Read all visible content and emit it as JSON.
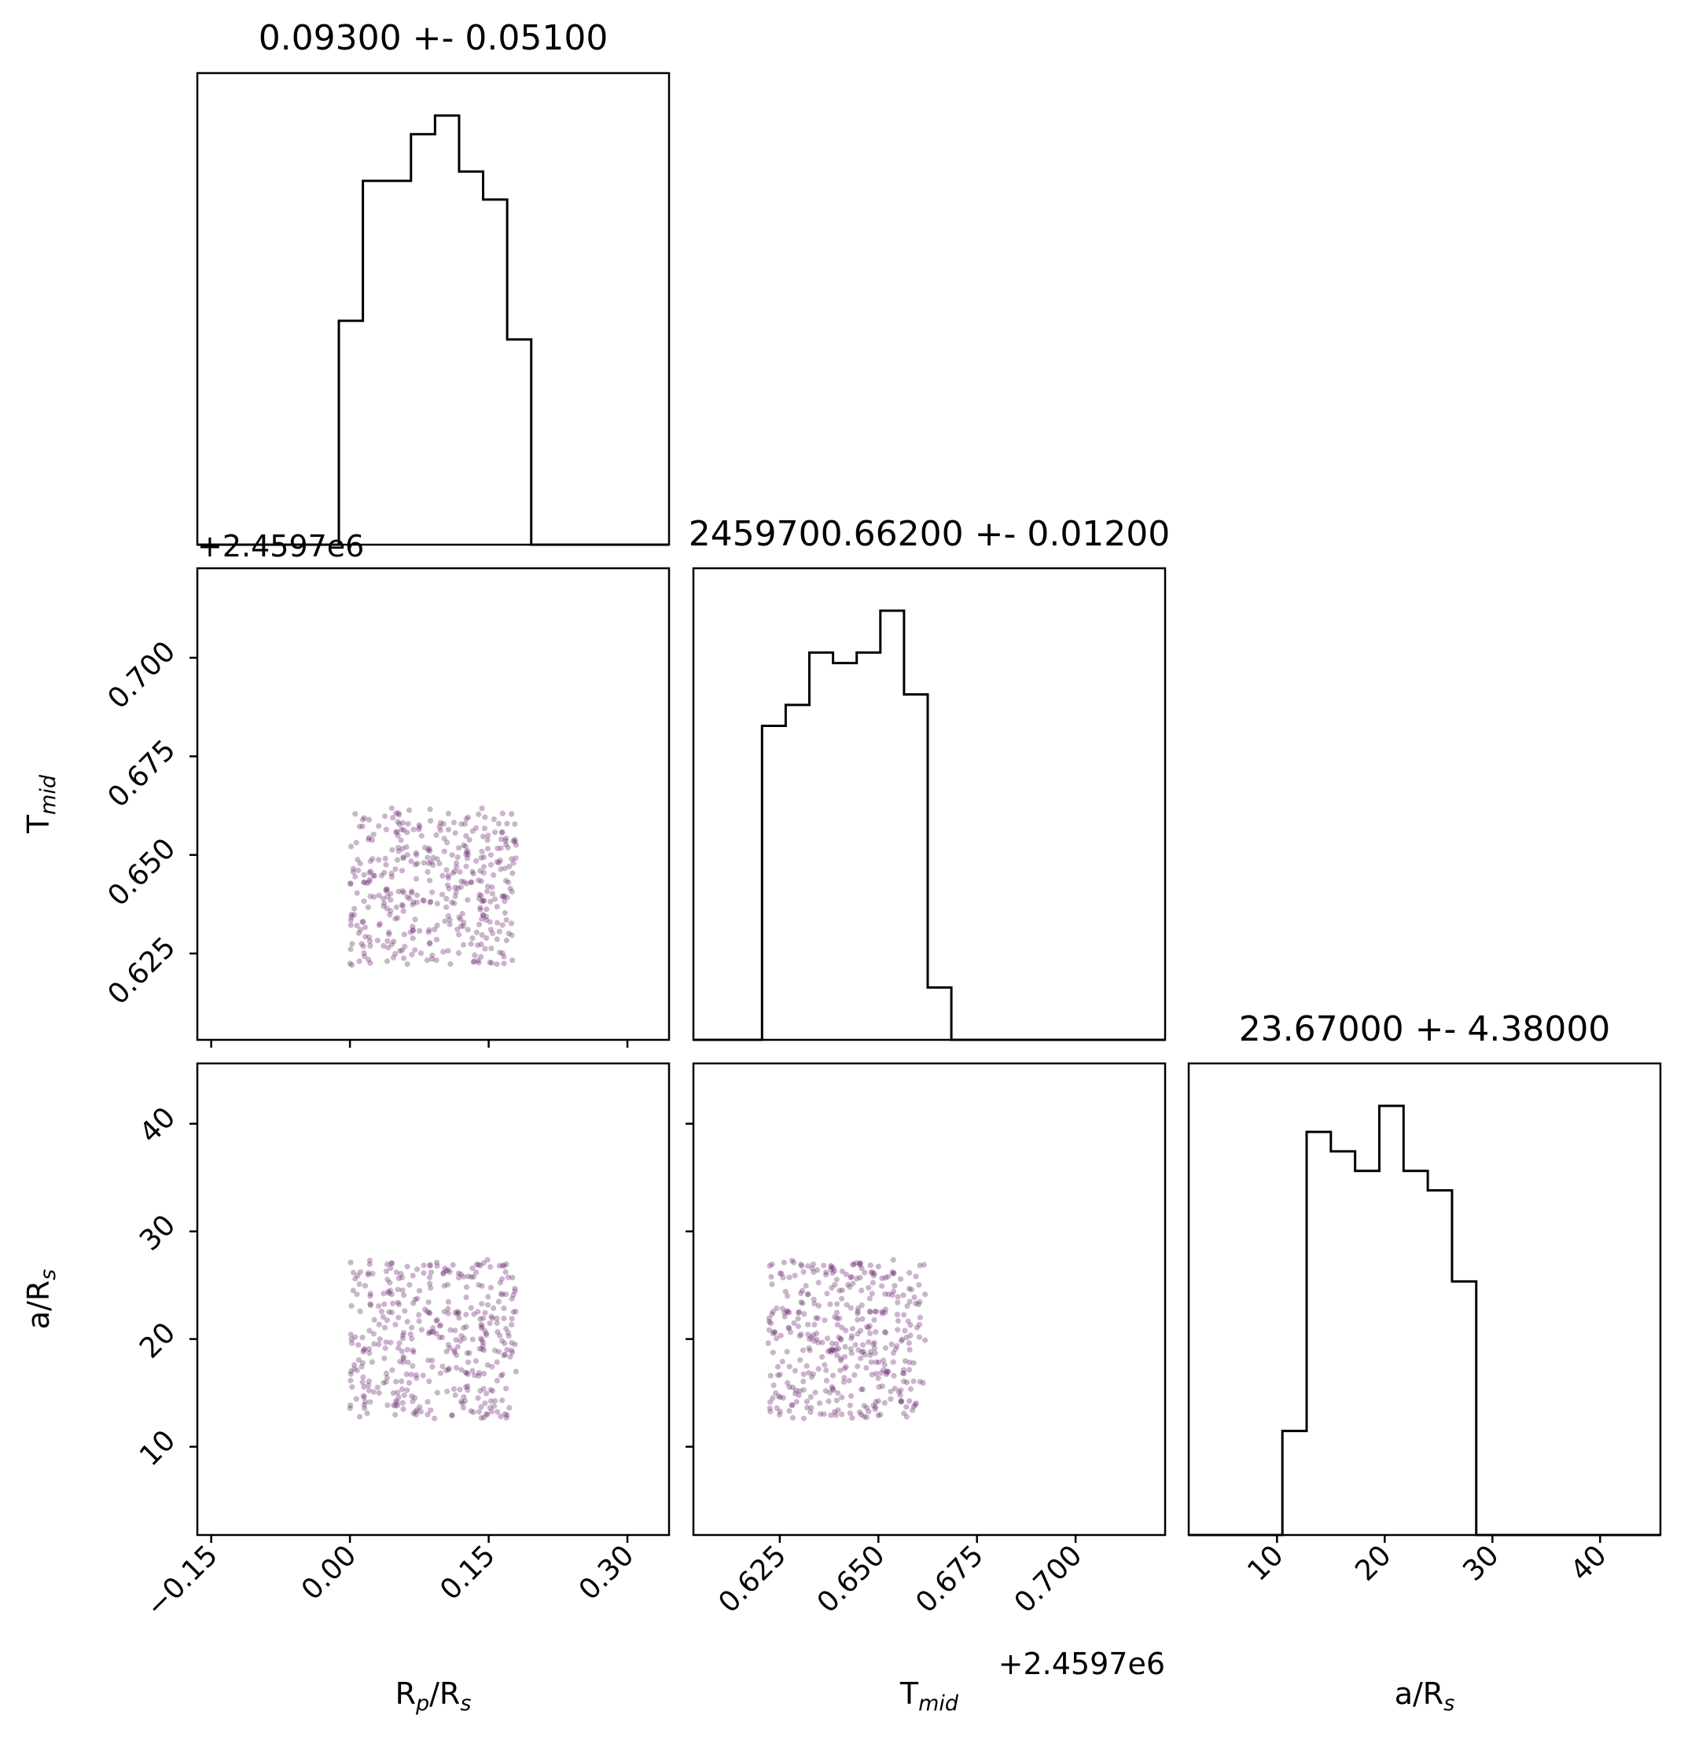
{
  "chart_data": {
    "type": "corner",
    "parameters": [
      {
        "key": "rp",
        "label_main": "R",
        "label_sub": "p",
        "label_rest": "/R",
        "label_sub2": "s"
      },
      {
        "key": "tmid",
        "label_main": "T",
        "label_sub": "mid",
        "label_rest": "",
        "label_sub2": ""
      },
      {
        "key": "a",
        "label_main": "a/R",
        "label_sub": "s",
        "label_rest": "",
        "label_sub2": ""
      }
    ],
    "titles": [
      "0.09300 +- 0.05100",
      "2459700.66200 +- 0.01200",
      "23.67000 +- 4.38000"
    ],
    "offset_text": "+2.4597e6",
    "axes": {
      "rp": {
        "range": [
          -0.165,
          0.345
        ],
        "ticks": [
          -0.15,
          0.0,
          0.15,
          0.3
        ],
        "tick_labels": [
          "−0.15",
          "0.00",
          "0.15",
          "0.30"
        ]
      },
      "tmid": {
        "range": [
          0.6031,
          0.7227
        ],
        "ticks": [
          0.625,
          0.65,
          0.675,
          0.7
        ],
        "tick_labels": [
          "0.625",
          "0.650",
          "0.675",
          "0.700"
        ]
      },
      "a": {
        "range": [
          1.8,
          45.6
        ],
        "ticks": [
          10,
          20,
          30,
          40
        ],
        "tick_labels": [
          "10",
          "20",
          "30",
          "40"
        ]
      }
    },
    "histograms": {
      "rp": {
        "edges": [
          -0.012,
          0.014,
          0.04,
          0.066,
          0.092,
          0.118,
          0.144,
          0.17,
          0.196
        ],
        "counts": [
          24,
          39,
          39,
          44,
          46,
          40,
          37,
          22
        ]
      },
      "tmid": {
        "edges": [
          0.6205,
          0.6265,
          0.6325,
          0.6385,
          0.6445,
          0.6505,
          0.6565,
          0.6625,
          0.6685
        ],
        "counts": [
          30,
          32,
          37,
          36,
          37,
          41,
          33,
          5
        ]
      },
      "a": {
        "edges": [
          10.5,
          12.75,
          15.0,
          17.25,
          19.5,
          21.75,
          24.0,
          26.25,
          28.5
        ],
        "counts": [
          8,
          31,
          29.5,
          28,
          33,
          28,
          26.5,
          19.5
        ]
      }
    },
    "samples": {
      "rp_range": [
        0.0,
        0.18
      ],
      "tmid_range": [
        0.622,
        0.662
      ],
      "a_range": [
        12.6,
        27.4
      ],
      "count": 400,
      "color": "#6a2c70",
      "alpha": 0.35
    },
    "colors": {
      "hist": "#000000",
      "frame": "#000000",
      "points": "#6a2c70"
    }
  }
}
